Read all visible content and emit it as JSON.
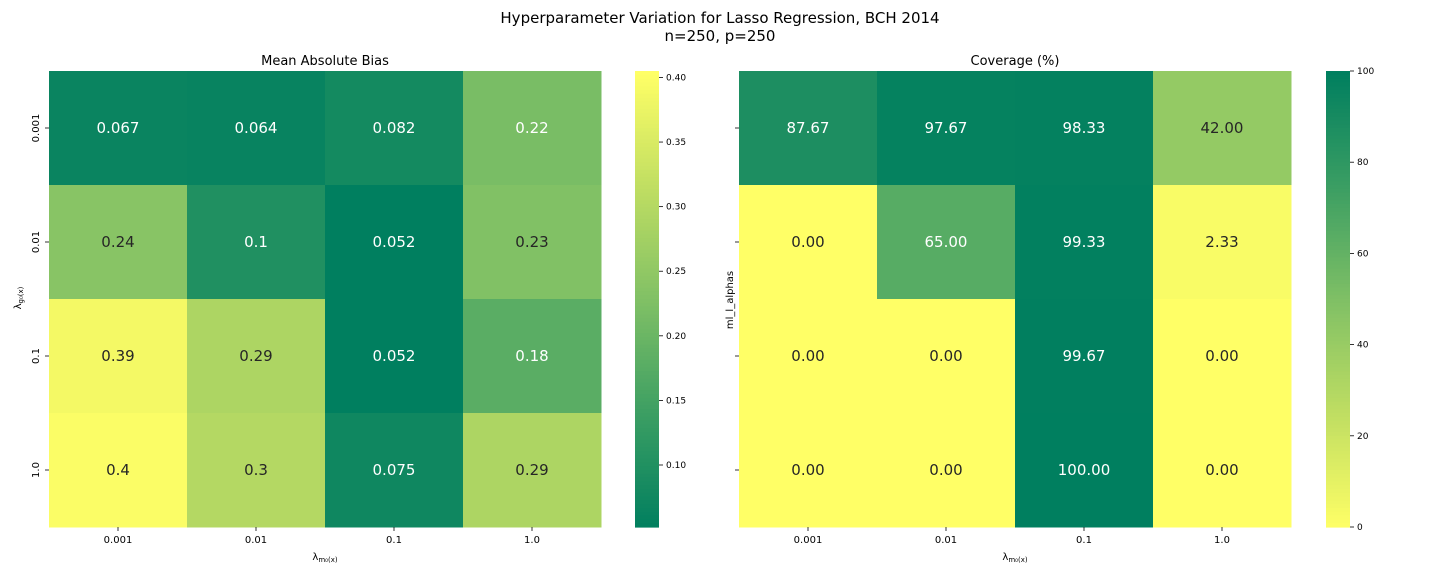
{
  "title_line1": "Hyperparameter Variation for Lasso Regression, BCH 2014",
  "title_line2": "n=250, p=250",
  "chart_data": [
    {
      "type": "heatmap",
      "title": "Mean Absolute Bias",
      "x_categories": [
        "0.001",
        "0.01",
        "0.1",
        "1.0"
      ],
      "y_categories": [
        "0.001",
        "0.01",
        "0.1",
        "1.0"
      ],
      "xlabel_main": "λ",
      "xlabel_sub": "m₀(x)",
      "ylabel_main": "λ",
      "ylabel_sub": "g₀(x)",
      "values": [
        [
          0.067,
          0.064,
          0.082,
          0.22
        ],
        [
          0.24,
          0.1,
          0.052,
          0.23
        ],
        [
          0.39,
          0.29,
          0.052,
          0.18
        ],
        [
          0.4,
          0.3,
          0.075,
          0.29
        ]
      ],
      "labels": [
        [
          "0.067",
          "0.064",
          "0.082",
          "0.22"
        ],
        [
          "0.24",
          "0.1",
          "0.052",
          "0.23"
        ],
        [
          "0.39",
          "0.29",
          "0.052",
          "0.18"
        ],
        [
          "0.4",
          "0.3",
          "0.075",
          "0.29"
        ]
      ],
      "colorscale": "yellow-green reversed (low = green, high = yellow)",
      "vmin": 0.052,
      "vmax": 0.405,
      "colorbar_ticks": [
        "0.10",
        "0.15",
        "0.20",
        "0.25",
        "0.30",
        "0.35",
        "0.40"
      ],
      "colorbar_tick_values": [
        0.1,
        0.15,
        0.2,
        0.25,
        0.3,
        0.35,
        0.4
      ]
    },
    {
      "type": "heatmap",
      "title": "Coverage (%)",
      "x_categories": [
        "0.001",
        "0.01",
        "0.1",
        "1.0"
      ],
      "y_categories": [
        "0.001",
        "0.01",
        "0.1",
        "1.0"
      ],
      "xlabel_main": "λ",
      "xlabel_sub": "m₀(x)",
      "ylabel": "ml_l_alphas",
      "values": [
        [
          87.67,
          97.67,
          98.33,
          42.0
        ],
        [
          0.0,
          65.0,
          99.33,
          2.33
        ],
        [
          0.0,
          0.0,
          99.67,
          0.0
        ],
        [
          0.0,
          0.0,
          100.0,
          0.0
        ]
      ],
      "labels": [
        [
          "87.67",
          "97.67",
          "98.33",
          "42.00"
        ],
        [
          "0.00",
          "65.00",
          "99.33",
          "2.33"
        ],
        [
          "0.00",
          "0.00",
          "99.67",
          "0.00"
        ],
        [
          "0.00",
          "0.00",
          "100.00",
          "0.00"
        ]
      ],
      "colorscale": "yellow-green (low = yellow, high = green)",
      "vmin": 0,
      "vmax": 100,
      "colorbar_ticks": [
        "0",
        "20",
        "40",
        "60",
        "80",
        "100"
      ],
      "colorbar_tick_values": [
        0,
        20,
        40,
        60,
        80,
        100
      ]
    }
  ],
  "colors": {
    "green": "#007f5f",
    "yellow": "#ffff66"
  }
}
